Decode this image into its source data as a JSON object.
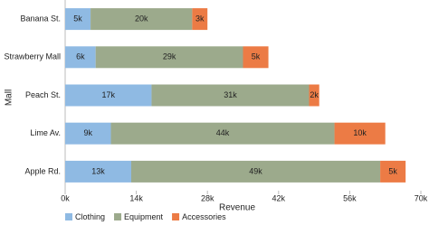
{
  "chart_data": {
    "type": "stacked-barh",
    "y_label": "Mall",
    "x_label": "Revenue",
    "categories": [
      "Banana St.",
      "Strawberry Mall",
      "Peach St.",
      "Lime Av.",
      "Apple Rd."
    ],
    "series": [
      {
        "name": "Clothing",
        "color": "#8fbae3",
        "values": [
          5000,
          6000,
          17000,
          9000,
          13000
        ],
        "value_labels": [
          "5k",
          "6k",
          "17k",
          "9k",
          "13k"
        ]
      },
      {
        "name": "Equipment",
        "color": "#9caa8c",
        "values": [
          20000,
          29000,
          31000,
          44000,
          49000
        ],
        "value_labels": [
          "20k",
          "29k",
          "31k",
          "44k",
          "49k"
        ]
      },
      {
        "name": "Accessories",
        "color": "#ec7b45",
        "values": [
          3000,
          5000,
          2000,
          10000,
          5000
        ],
        "value_labels": [
          "3k",
          "5k",
          "2k",
          "10k",
          "5k"
        ]
      }
    ],
    "xlim": [
      0,
      70000
    ],
    "xticks": [
      {
        "value": 0,
        "label": "0k"
      },
      {
        "value": 14000,
        "label": "14k"
      },
      {
        "value": 28000,
        "label": "28k"
      },
      {
        "value": 42000,
        "label": "42k"
      },
      {
        "value": 56000,
        "label": "56k"
      },
      {
        "value": 70000,
        "label": "70k"
      }
    ]
  }
}
